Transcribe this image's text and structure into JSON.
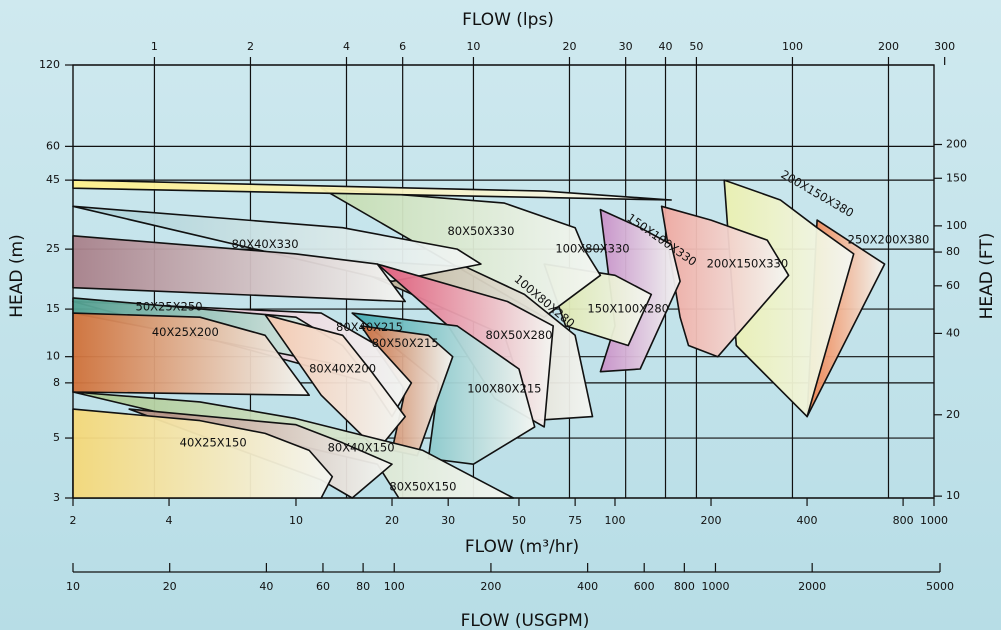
{
  "chart_data": {
    "type": "area",
    "titles": {
      "top": "FLOW (lps)",
      "bottom": "FLOW (m³/hr)",
      "usgpm": "FLOW (USGPM)",
      "left": "HEAD (m)",
      "right": "HEAD (FT)"
    },
    "axes": {
      "x_m3hr": {
        "scale": "log",
        "range": [
          2,
          1000
        ],
        "ticks": [
          2,
          4,
          10,
          20,
          30,
          50,
          75,
          100,
          200,
          400,
          800,
          1000
        ]
      },
      "x_lps": {
        "scale": "log",
        "ticks": [
          1,
          2,
          4,
          6,
          10,
          20,
          30,
          40,
          50,
          100,
          200,
          300
        ]
      },
      "x_usgpm": {
        "scale": "log",
        "ticks": [
          10,
          20,
          40,
          60,
          80,
          100,
          200,
          400,
          600,
          800,
          1000,
          2000,
          5000
        ]
      },
      "y_m": {
        "scale": "log",
        "range": [
          3,
          120
        ],
        "ticks": [
          3,
          5,
          8,
          10,
          15,
          25,
          45,
          60,
          120
        ]
      },
      "y_ft": {
        "scale": "log",
        "ticks": [
          10,
          20,
          40,
          60,
          80,
          100,
          150,
          200
        ]
      }
    },
    "grid": true,
    "series": [
      {
        "name": "250X200X380",
        "color": "#f0804a",
        "points": [
          [
            430,
            32
          ],
          [
            700,
            22
          ],
          [
            400,
            6
          ]
        ]
      },
      {
        "name": "200X150X380",
        "color": "#eaf0b0",
        "points": [
          [
            220,
            45
          ],
          [
            330,
            38
          ],
          [
            430,
            30
          ],
          [
            560,
            24
          ],
          [
            400,
            6
          ],
          [
            240,
            11
          ]
        ]
      },
      {
        "name": "200X150X330",
        "color": "#f0a8a0",
        "points": [
          [
            140,
            36
          ],
          [
            200,
            32
          ],
          [
            300,
            27
          ],
          [
            350,
            20
          ],
          [
            210,
            10
          ],
          [
            170,
            11
          ],
          [
            160,
            14
          ]
        ]
      },
      {
        "name": "150X100X330",
        "color": "#c890c8",
        "points": [
          [
            90,
            35
          ],
          [
            120,
            30
          ],
          [
            150,
            26
          ],
          [
            160,
            19
          ],
          [
            120,
            9
          ],
          [
            90,
            8.8
          ],
          [
            100,
            13
          ]
        ]
      },
      {
        "name": "150X100X280",
        "color": "#dae6a6",
        "points": [
          [
            60,
            22
          ],
          [
            100,
            20
          ],
          [
            130,
            17
          ],
          [
            110,
            11
          ],
          [
            70,
            13
          ]
        ]
      },
      {
        "name": "100X80X330",
        "color": "#c2dcb0",
        "points": [
          [
            12,
            42
          ],
          [
            45,
            37
          ],
          [
            75,
            30
          ],
          [
            80,
            25
          ],
          [
            90,
            20
          ],
          [
            60,
            14
          ]
        ]
      },
      {
        "name": "100X80X280",
        "color": "#b0a080",
        "points": [
          [
            13,
            23
          ],
          [
            34,
            21.5
          ],
          [
            52,
            17
          ],
          [
            75,
            12
          ],
          [
            85,
            6
          ],
          [
            55,
            5.8
          ],
          [
            45,
            12
          ]
        ]
      },
      {
        "name": "80X50X330",
        "color": "#a8d0d8",
        "points": [
          [
            2,
            36
          ],
          [
            14,
            30
          ],
          [
            32,
            25
          ],
          [
            38,
            22
          ],
          [
            20,
            19
          ]
        ]
      },
      {
        "name": "80X50X280",
        "color": "#e05878",
        "points": [
          [
            18,
            22
          ],
          [
            46,
            16
          ],
          [
            64,
            13
          ],
          [
            60,
            5.5
          ],
          [
            42,
            7
          ],
          [
            30,
            13
          ]
        ]
      },
      {
        "name": "80X40X330",
        "color": "#a8808a",
        "points": [
          [
            2,
            28
          ],
          [
            10,
            24
          ],
          [
            18,
            22
          ],
          [
            22,
            16
          ],
          [
            2,
            18
          ]
        ]
      },
      {
        "name": "100X80X215",
        "color": "#40a8b0",
        "points": [
          [
            15,
            14.5
          ],
          [
            32,
            13
          ],
          [
            50,
            9
          ],
          [
            56,
            5.5
          ],
          [
            36,
            4
          ],
          [
            26,
            4.2
          ],
          [
            28,
            8
          ]
        ]
      },
      {
        "name": "80X50X215",
        "color": "#c86838",
        "points": [
          [
            16,
            13
          ],
          [
            26,
            12
          ],
          [
            31,
            10
          ],
          [
            24,
            4.3
          ],
          [
            20,
            4.5
          ],
          [
            22,
            7.5
          ]
        ]
      },
      {
        "name": "80X40X215",
        "color": "#e0a0c0",
        "points": [
          [
            2,
            16
          ],
          [
            12,
            14.5
          ],
          [
            18,
            11
          ],
          [
            23,
            8
          ],
          [
            20,
            6
          ],
          [
            17,
            8
          ]
        ]
      },
      {
        "name": "50X25X250",
        "color": "#50a090",
        "points": [
          [
            2,
            16.5
          ],
          [
            10,
            14
          ],
          [
            14,
            11
          ],
          [
            16,
            9
          ],
          [
            2,
            14.5
          ]
        ]
      },
      {
        "name": "80X40X200",
        "color": "#f5c8b0",
        "points": [
          [
            8,
            14.3
          ],
          [
            14,
            12
          ],
          [
            17,
            9
          ],
          [
            22,
            6
          ],
          [
            18,
            4.5
          ],
          [
            12,
            7.2
          ]
        ]
      },
      {
        "name": "40X25X200",
        "color": "#d07038",
        "points": [
          [
            2,
            14.5
          ],
          [
            5,
            14
          ],
          [
            8,
            12
          ],
          [
            11,
            7.2
          ],
          [
            2,
            7.4
          ]
        ]
      },
      {
        "name": "80X50X150",
        "color": "#a8c890",
        "points": [
          [
            2,
            7.4
          ],
          [
            5,
            6.8
          ],
          [
            10,
            5.9
          ],
          [
            25,
            4.5
          ],
          [
            48,
            3
          ],
          [
            21,
            3
          ],
          [
            18,
            4
          ]
        ]
      },
      {
        "name": "80X40X150",
        "color": "#b08878",
        "points": [
          [
            3,
            6.4
          ],
          [
            10,
            5.6
          ],
          [
            14,
            4.8
          ],
          [
            20,
            4
          ],
          [
            15,
            3
          ],
          [
            12,
            3.5
          ]
        ]
      },
      {
        "name": "40X25X150",
        "color": "#f5d878",
        "points": [
          [
            2,
            6.4
          ],
          [
            5,
            5.8
          ],
          [
            8,
            5.2
          ],
          [
            11,
            4.5
          ],
          [
            13,
            3.6
          ],
          [
            12,
            3
          ],
          [
            2,
            3
          ]
        ]
      },
      {
        "name": "",
        "color": "#fff08a",
        "points": [
          [
            2,
            45
          ],
          [
            60,
            41
          ],
          [
            150,
            38
          ],
          [
            2,
            42
          ]
        ]
      }
    ],
    "labels": [
      {
        "text": "250X200X380",
        "x": 720,
        "y": 27
      },
      {
        "text": "200X150X380",
        "x": 430,
        "y": 40,
        "angle": 30
      },
      {
        "text": "200X150X330",
        "x": 260,
        "y": 22
      },
      {
        "text": "150X100X330",
        "x": 140,
        "y": 27,
        "angle": 35
      },
      {
        "text": "150X100X280",
        "x": 110,
        "y": 15
      },
      {
        "text": "100X80X330",
        "x": 85,
        "y": 25
      },
      {
        "text": "100X80X280",
        "x": 60,
        "y": 16,
        "angle": 40
      },
      {
        "text": "80X50X330",
        "x": 38,
        "y": 29
      },
      {
        "text": "80X50X280",
        "x": 50,
        "y": 12
      },
      {
        "text": "80X40X330",
        "x": 8,
        "y": 26
      },
      {
        "text": "100X80X215",
        "x": 45,
        "y": 7.6
      },
      {
        "text": "80X50X215",
        "x": 22,
        "y": 11.2
      },
      {
        "text": "80X40X215",
        "x": 17,
        "y": 12.8
      },
      {
        "text": "50X25X250",
        "x": 4,
        "y": 15.3
      },
      {
        "text": "80X40X200",
        "x": 14,
        "y": 9
      },
      {
        "text": "40X25X200",
        "x": 4.5,
        "y": 12.3
      },
      {
        "text": "80X50X150",
        "x": 25,
        "y": 3.3
      },
      {
        "text": "80X40X150",
        "x": 16,
        "y": 4.6
      },
      {
        "text": "40X25X150",
        "x": 5.5,
        "y": 4.8
      }
    ]
  }
}
